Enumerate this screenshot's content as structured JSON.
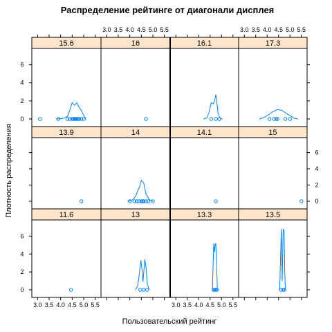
{
  "chart_data": {
    "type": "density-lattice",
    "title": "Распределение рейтинге от диагонали дисплея",
    "xlabel": "Пользовательский рейтинг",
    "ylabel": "Плотность распределения",
    "xlim": [
      2.75,
      5.75
    ],
    "ylim": [
      -0.3,
      7.5
    ],
    "x_ticks": [
      3.0,
      3.5,
      4.0,
      4.5,
      5.0,
      5.5
    ],
    "x_tick_labels": [
      "3.0",
      "3.5",
      "4.0",
      "4.5",
      "5.0",
      "5.5"
    ],
    "y_ticks": [
      0,
      2,
      4,
      6
    ],
    "y_tick_labels": [
      "0",
      "2",
      "4",
      "6"
    ],
    "panels": [
      {
        "label": "15.6",
        "points": [
          3.1,
          3.9,
          4.3,
          4.4,
          4.5,
          4.55,
          4.6,
          4.65,
          4.7,
          4.75,
          4.8,
          4.9,
          5.0
        ],
        "density": [
          [
            3.8,
            0.0
          ],
          [
            4.1,
            0.05
          ],
          [
            4.3,
            0.3
          ],
          [
            4.4,
            1.0
          ],
          [
            4.5,
            1.8
          ],
          [
            4.6,
            1.5
          ],
          [
            4.7,
            1.8
          ],
          [
            4.8,
            1.3
          ],
          [
            4.9,
            0.9
          ],
          [
            5.0,
            0.4
          ],
          [
            5.1,
            0.0
          ]
        ]
      },
      {
        "label": "16",
        "points": [
          4.7
        ],
        "density": []
      },
      {
        "label": "16.1",
        "points": [
          4.55,
          4.75,
          4.9
        ],
        "density": [
          [
            4.2,
            0.0
          ],
          [
            4.35,
            0.1
          ],
          [
            4.45,
            0.7
          ],
          [
            4.55,
            1.8
          ],
          [
            4.6,
            1.7
          ],
          [
            4.65,
            1.7
          ],
          [
            4.7,
            2.1
          ],
          [
            4.75,
            2.7
          ],
          [
            4.8,
            1.8
          ],
          [
            4.85,
            0.6
          ],
          [
            4.95,
            0.05
          ],
          [
            5.05,
            0.0
          ]
        ]
      },
      {
        "label": "17.3",
        "points": [
          4.1,
          4.3,
          4.4,
          4.45,
          4.8,
          5.0
        ],
        "density": [
          [
            3.65,
            0.0
          ],
          [
            3.85,
            0.15
          ],
          [
            4.05,
            0.45
          ],
          [
            4.25,
            0.8
          ],
          [
            4.45,
            1.05
          ],
          [
            4.65,
            0.95
          ],
          [
            4.85,
            0.6
          ],
          [
            5.05,
            0.3
          ],
          [
            5.2,
            0.05
          ],
          [
            5.35,
            0.0
          ]
        ]
      },
      {
        "label": "13.9",
        "points": [
          4.9
        ],
        "density": []
      },
      {
        "label": "14",
        "points": [
          4.0,
          4.2,
          4.3,
          4.4,
          4.5,
          4.55,
          4.6,
          4.7,
          4.8,
          5.0
        ],
        "density": [
          [
            3.9,
            0.0
          ],
          [
            4.1,
            0.15
          ],
          [
            4.25,
            0.6
          ],
          [
            4.35,
            1.3
          ],
          [
            4.45,
            2.0
          ],
          [
            4.5,
            2.6
          ],
          [
            4.55,
            2.4
          ],
          [
            4.6,
            2.3
          ],
          [
            4.7,
            0.9
          ],
          [
            4.85,
            0.2
          ],
          [
            5.0,
            0.0
          ]
        ]
      },
      {
        "label": "14.1",
        "points": [
          4.75
        ],
        "density": []
      },
      {
        "label": "15",
        "points": [
          5.5
        ],
        "density": []
      },
      {
        "label": "11.6",
        "points": [
          4.45
        ],
        "density": []
      },
      {
        "label": "13",
        "points": [
          4.45,
          4.6,
          4.75
        ],
        "density": [
          [
            4.25,
            0.0
          ],
          [
            4.35,
            0.5
          ],
          [
            4.42,
            2.0
          ],
          [
            4.48,
            3.3
          ],
          [
            4.53,
            2.3
          ],
          [
            4.57,
            0.9
          ],
          [
            4.61,
            2.1
          ],
          [
            4.65,
            3.4
          ],
          [
            4.7,
            2.6
          ],
          [
            4.76,
            0.6
          ],
          [
            4.85,
            0.0
          ]
        ]
      },
      {
        "label": "13.3",
        "points": [
          4.65,
          4.7,
          4.75,
          4.8
        ],
        "density": [
          [
            4.6,
            0.0
          ],
          [
            4.63,
            2.5
          ],
          [
            4.66,
            5.2
          ],
          [
            4.69,
            4.2
          ],
          [
            4.72,
            5.0
          ],
          [
            4.75,
            5.2
          ],
          [
            4.78,
            3.0
          ],
          [
            4.82,
            0.0
          ]
        ]
      },
      {
        "label": "13.5",
        "points": [
          4.6,
          4.7,
          4.75
        ],
        "density": [
          [
            4.55,
            0.0
          ],
          [
            4.58,
            3.0
          ],
          [
            4.62,
            6.8
          ],
          [
            4.66,
            1.0
          ],
          [
            4.7,
            6.8
          ],
          [
            4.74,
            6.6
          ],
          [
            4.77,
            2.0
          ],
          [
            4.8,
            0.0
          ]
        ]
      }
    ]
  }
}
